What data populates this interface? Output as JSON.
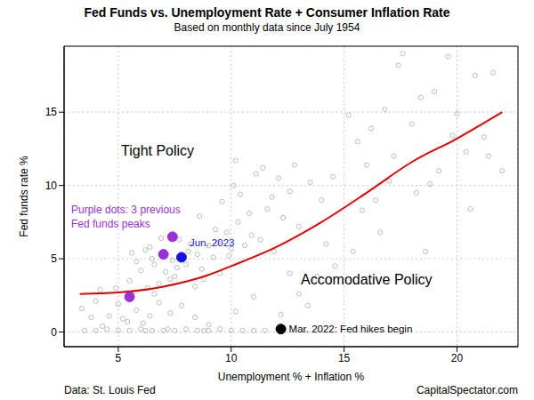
{
  "chart_data": {
    "type": "scatter",
    "title": "Fed Funds vs. Unemployment Rate + Consumer Inflation Rate",
    "subtitle": "Based on monthly data since July 1954",
    "x_label": "Unemployment % + Inflation %",
    "y_label": "Fed funds rate %",
    "xlim": [
      2.6,
      22.7
    ],
    "ylim": [
      -1,
      19.5
    ],
    "xticks": [
      5,
      10,
      15,
      20
    ],
    "yticks": [
      0,
      5,
      10,
      15
    ],
    "grid": true,
    "annotations": [
      "Tight Policy",
      "Accomodative Policy",
      "Purple dots: 3 previous Fed funds peaks"
    ],
    "source": "Data: St. Louis Fed",
    "credit": "CapitalSpectator.com",
    "series": [
      {
        "type": "scatter",
        "marker": "open_circle",
        "color": "#b4b4b4",
        "x": [
          3.5,
          4.0,
          4.5,
          5.0,
          5.5,
          6.0,
          6.5,
          7.0,
          7.5,
          8.0,
          8.5,
          9.0,
          9.5,
          10.0,
          10.5,
          11.0,
          11.5,
          6.2,
          7.2,
          8.8,
          3.4,
          4.0,
          4.6,
          5.2,
          5.8,
          6.4,
          4.3,
          5.0,
          5.6,
          6.8,
          3.8,
          6.1,
          7.3,
          4.9,
          5.4,
          6.6,
          7.8,
          8.4,
          9.0,
          4.2,
          5.5,
          6.0,
          6.5,
          7.0,
          7.5,
          8.0,
          8.5,
          9.0,
          9.5,
          6.2,
          6.8,
          7.4,
          8.2,
          8.8,
          5.8,
          6.4,
          7.1,
          7.7,
          8.4,
          9.2,
          5.6,
          6.3,
          6.9,
          7.6,
          8.1,
          8.7,
          9.4,
          10.0,
          6.6,
          7.3,
          9.8,
          10.3,
          10.8,
          11.3,
          11.8,
          12.3,
          9.6,
          10.1,
          10.6,
          11.1,
          11.6,
          12.1,
          12.6,
          13.0,
          9.9,
          10.4,
          10.9,
          11.4,
          11.9,
          12.8,
          8.6,
          9.3,
          13.5,
          14.0,
          10.2,
          14.5,
          15.2,
          15.6,
          16.0,
          16.4,
          16.8,
          17.2,
          17.6,
          18.0,
          18.4,
          18.8,
          19.2,
          19.6,
          20.0,
          20.4,
          20.8,
          21.2,
          21.6,
          22.0,
          15.8,
          16.6,
          17.4,
          18.2,
          19.0,
          19.8,
          20.6,
          21.4,
          17.0,
          18.6,
          16.2,
          12.2,
          13.0,
          13.8,
          14.6,
          15.4,
          12.6,
          13.4,
          14.2,
          11.0,
          10.2
        ],
        "values": [
          0.1,
          0.1,
          0.2,
          0.1,
          0.1,
          0.2,
          0.1,
          0.1,
          0.1,
          0.2,
          0.1,
          0.1,
          0.2,
          0.1,
          0.1,
          0.1,
          0.1,
          0.1,
          0.2,
          0.1,
          1.6,
          2.1,
          1.1,
          0.9,
          1.5,
          1.1,
          0.4,
          1.9,
          2.6,
          2.0,
          1.0,
          0.6,
          1.3,
          3.0,
          0.7,
          2.6,
          1.8,
          1.0,
          0.5,
          2.9,
          3.5,
          4.2,
          5.0,
          5.5,
          3.8,
          4.6,
          5.3,
          5.9,
          4.0,
          5.6,
          3.3,
          4.9,
          6.0,
          3.6,
          4.8,
          5.8,
          4.1,
          6.3,
          3.1,
          5.1,
          5.4,
          3.0,
          6.4,
          4.4,
          5.5,
          4.3,
          6.1,
          5.7,
          4.6,
          3.6,
          6.8,
          7.5,
          8.1,
          6.3,
          9.2,
          7.8,
          8.9,
          10.0,
          5.9,
          10.8,
          8.4,
          10.5,
          9.6,
          7.2,
          5.2,
          9.4,
          6.6,
          11.2,
          5.5,
          11.4,
          7.9,
          7.0,
          10.2,
          9.0,
          11.7,
          10.6,
          14.8,
          13.0,
          11.4,
          9.0,
          15.2,
          12.0,
          19.0,
          14.2,
          16.0,
          10.1,
          11.0,
          18.8,
          14.9,
          12.3,
          17.5,
          13.3,
          17.7,
          11.0,
          8.3,
          6.8,
          18.2,
          9.5,
          16.4,
          13.4,
          8.4,
          12.0,
          10.3,
          5.5,
          13.9,
          1.2,
          2.6,
          3.8,
          4.5,
          5.5,
          4.0,
          1.8,
          6.0,
          2.4,
          1.4
        ]
      },
      {
        "type": "line",
        "line_style": "solid",
        "color": "#e00000",
        "x": [
          3.3,
          5,
          7,
          9,
          10,
          12,
          14,
          16,
          18,
          20,
          22
        ],
        "values": [
          2.6,
          2.7,
          3.1,
          3.9,
          4.5,
          5.8,
          7.5,
          9.5,
          11.6,
          13.2,
          15
        ]
      },
      {
        "type": "scatter",
        "marker": "circle",
        "color": "#9b30d9",
        "x": [
          5.5,
          7.0,
          7.4
        ],
        "values": [
          2.4,
          5.3,
          6.5
        ]
      },
      {
        "type": "scatter",
        "marker": "circle",
        "color": "#1414e6",
        "x": [
          7.8
        ],
        "values": [
          5.1
        ],
        "labels": [
          "Jun. 2023"
        ]
      },
      {
        "type": "scatter",
        "marker": "circle",
        "color": "#000000",
        "x": [
          12.2
        ],
        "values": [
          0.2
        ],
        "labels": [
          "Mar. 2022: Fed hikes begin"
        ]
      }
    ]
  }
}
